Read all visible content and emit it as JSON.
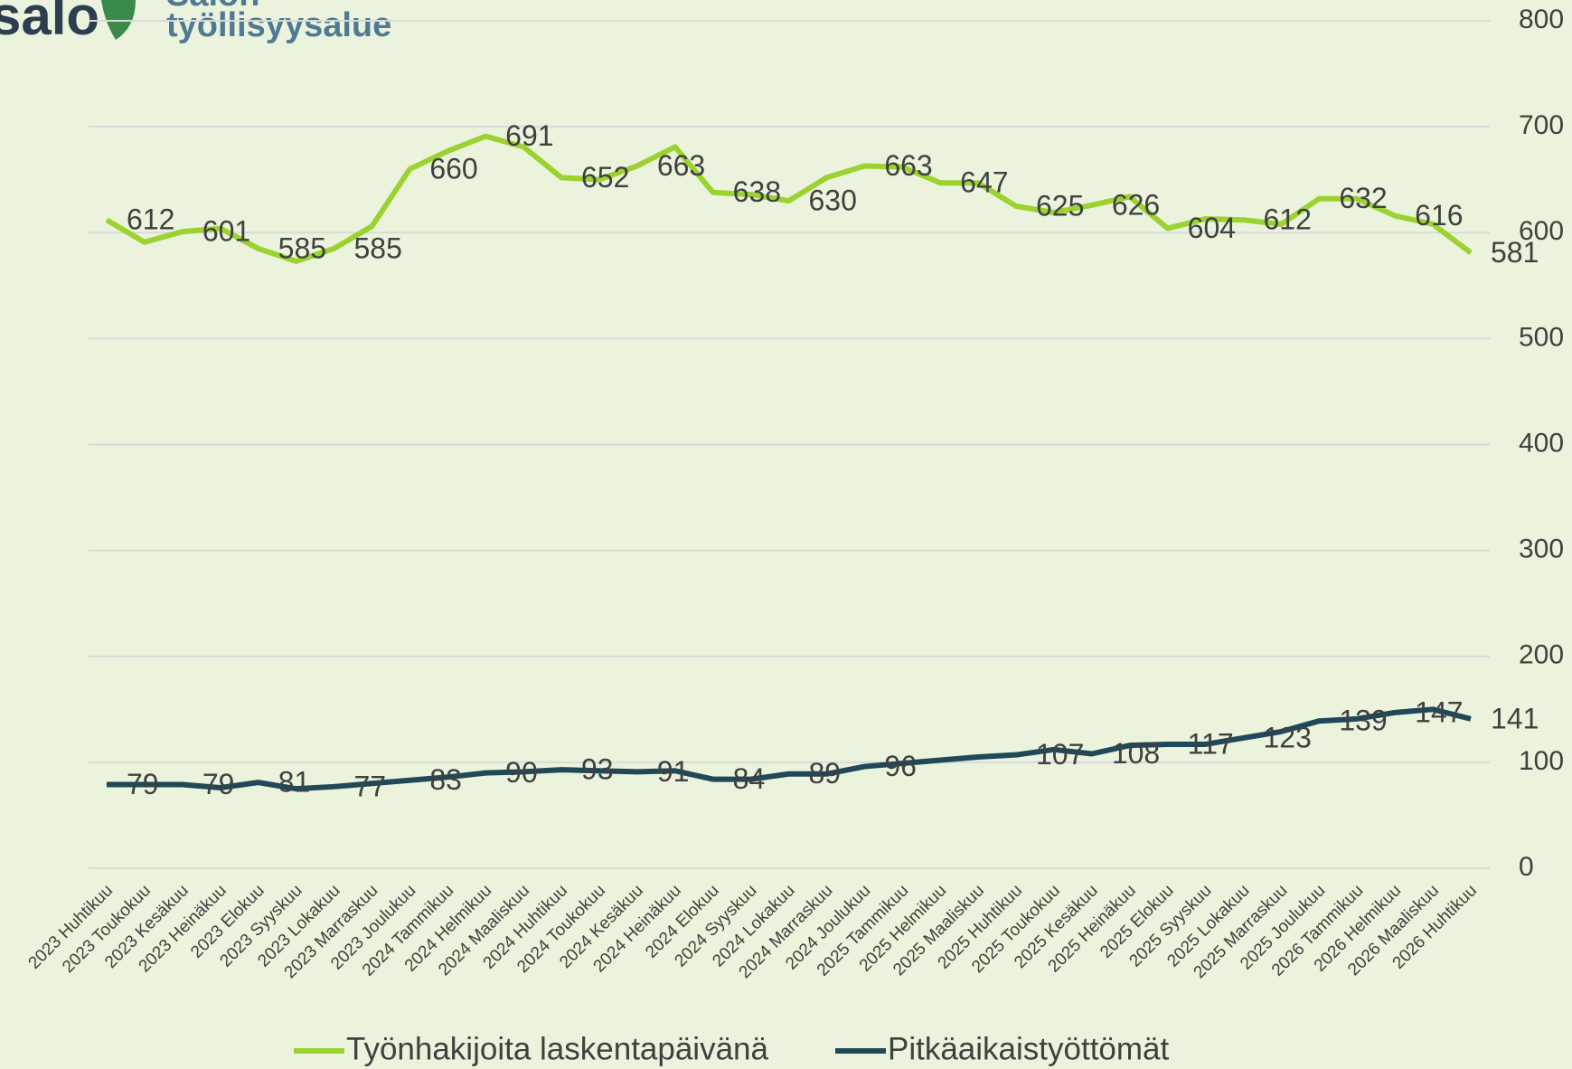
{
  "logo": {
    "brand": "salo",
    "name_line1": "Salon",
    "name_line2": "työllisyysalue"
  },
  "chart_data": {
    "type": "line",
    "categories": [
      "2023 Huhtikuu",
      "2023 Toukokuu",
      "2023 Kesäkuu",
      "2023 Heinäkuu",
      "2023 Elokuu",
      "2023 Syyskuu",
      "2023 Lokakuu",
      "2023 Marraskuu",
      "2023 Joulukuu",
      "2024 Tammikuu",
      "2024 Helmikuu",
      "2024 Maaliskuu",
      "2024 Huhtikuu",
      "2024 Toukokuu",
      "2024 Kesäkuu",
      "2024 Heinäkuu",
      "2024 Elokuu",
      "2024 Syyskuu",
      "2024 Lokakuu",
      "2024 Marraskuu",
      "2024 Joulukuu",
      "2025 Tammikuu",
      "2025 Helmikuu",
      "2025 Maaliskuu",
      "2025 Huhtikuu",
      "2025 Toukokuu",
      "2025 Kesäkuu",
      "2025 Heinäkuu",
      "2025 Elokuu",
      "2025 Syyskuu",
      "2025 Lokakuu",
      "2025 Marraskuu",
      "2025 Joulukuu",
      "2026 Tammikuu",
      "2026 Helmikuu",
      "2026 Maaliskuu",
      "2026 Huhtikuu"
    ],
    "series": [
      {
        "name": "Työnhakijoita laskentapäivänä",
        "color": "#9cd230",
        "values": [
          612,
          591,
          601,
          604,
          585,
          573,
          585,
          606,
          660,
          677,
          691,
          681,
          652,
          650,
          663,
          681,
          638,
          636,
          630,
          652,
          663,
          662,
          647,
          647,
          625,
          619,
          626,
          634,
          604,
          613,
          612,
          608,
          632,
          632,
          616,
          608,
          581
        ],
        "value_labels": [
          "612",
          null,
          "601",
          null,
          "585",
          null,
          "585",
          null,
          "660",
          null,
          "691",
          null,
          "652",
          null,
          "663",
          null,
          "638",
          null,
          "630",
          null,
          "663",
          null,
          "647",
          null,
          "625",
          null,
          "626",
          null,
          "604",
          null,
          "612",
          null,
          "632",
          null,
          "616",
          null,
          "581"
        ]
      },
      {
        "name": "Pitkäaikaistyöttömät",
        "color": "#1f4858",
        "values": [
          79,
          79,
          79,
          76,
          81,
          75,
          77,
          80,
          83,
          86,
          90,
          91,
          93,
          92,
          91,
          92,
          84,
          84,
          89,
          89,
          96,
          99,
          102,
          105,
          107,
          112,
          108,
          116,
          117,
          117,
          123,
          129,
          139,
          141,
          147,
          150,
          141
        ],
        "value_labels": [
          "79",
          null,
          "79",
          null,
          "81",
          null,
          "77",
          null,
          "83",
          null,
          "90",
          null,
          "93",
          null,
          "91",
          null,
          "84",
          null,
          "89",
          null,
          "96",
          null,
          null,
          null,
          "107",
          null,
          "108",
          null,
          "117",
          null,
          "123",
          null,
          "139",
          null,
          "147",
          null,
          "141"
        ]
      }
    ],
    "ylim": [
      0,
      800
    ],
    "yticks": [
      0,
      100,
      200,
      300,
      400,
      500,
      600,
      700,
      800
    ],
    "grid": true,
    "legend": "bottom",
    "y_axis_side": "right"
  }
}
